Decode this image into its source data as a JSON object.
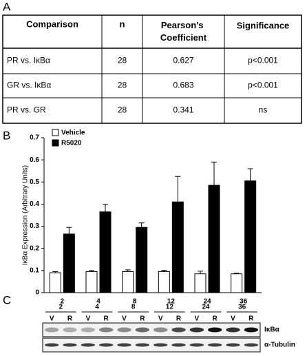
{
  "panel_labels": [
    "A",
    "B",
    "C"
  ],
  "table": {
    "header": [
      "Comparison",
      "n",
      "Pearson’s Coefficient",
      "Significance"
    ],
    "rows": [
      [
        "PR vs. IκBα",
        "28",
        "0.627",
        "p<0.001"
      ],
      [
        "GR vs. IκBα",
        "28",
        "0.683",
        "p<0.001"
      ],
      [
        "PR vs. GR",
        "28",
        "0.341",
        "ns"
      ]
    ]
  },
  "chart_data": {
    "type": "bar",
    "ylabel": "IκBα Expression (Arbitrary Units)",
    "categories": [
      "2",
      "4",
      "8",
      "12",
      "24",
      "36"
    ],
    "series": [
      {
        "name": "Vehicle",
        "color": "#ffffff",
        "values": [
          0.09,
          0.095,
          0.095,
          0.095,
          0.085,
          0.085
        ],
        "errors": [
          0.005,
          0.005,
          0.008,
          0.006,
          0.012,
          0.003
        ]
      },
      {
        "name": "R5020",
        "color": "#000000",
        "values": [
          0.265,
          0.365,
          0.295,
          0.41,
          0.485,
          0.505
        ],
        "errors": [
          0.03,
          0.035,
          0.02,
          0.115,
          0.105,
          0.055
        ]
      }
    ],
    "ylim": [
      0,
      0.7
    ],
    "yticks": [
      0,
      0.1,
      0.2,
      0.3,
      0.4,
      0.5,
      0.6,
      0.7
    ],
    "legend": "upper left"
  },
  "blot": {
    "timepoints": [
      "2",
      "4",
      "8",
      "12",
      "24",
      "36"
    ],
    "lanes": [
      "V",
      "R",
      "V",
      "R",
      "V",
      "R",
      "V",
      "R",
      "V",
      "R",
      "V",
      "R"
    ],
    "rows": [
      "IκBα",
      "α-Tubulin"
    ]
  }
}
